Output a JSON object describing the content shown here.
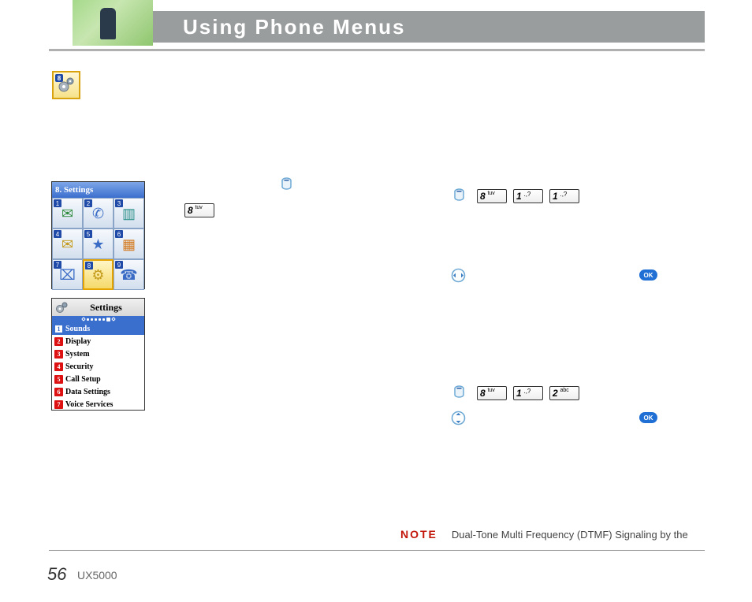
{
  "header": {
    "title": "Using Phone Menus"
  },
  "gearBadge": {
    "num": "8"
  },
  "phoneGrid": {
    "title": "8. Settings",
    "cells": [
      {
        "n": "1",
        "glyph": "✉",
        "cls": "green"
      },
      {
        "n": "2",
        "glyph": "✆",
        "cls": "blue"
      },
      {
        "n": "3",
        "glyph": "▥",
        "cls": "teal"
      },
      {
        "n": "4",
        "glyph": "✉",
        "cls": "gold"
      },
      {
        "n": "5",
        "glyph": "★",
        "cls": "blue"
      },
      {
        "n": "6",
        "glyph": "▦",
        "cls": "orange"
      },
      {
        "n": "7",
        "glyph": "⌧",
        "cls": "blue"
      },
      {
        "n": "8",
        "glyph": "⚙",
        "cls": "gold",
        "sel": true
      },
      {
        "n": "9",
        "glyph": "☎",
        "cls": "blue"
      }
    ]
  },
  "phoneList": {
    "title": "Settings",
    "rows": [
      {
        "n": "1",
        "label": "Sounds",
        "sel": true
      },
      {
        "n": "2",
        "label": "Display"
      },
      {
        "n": "3",
        "label": "System"
      },
      {
        "n": "4",
        "label": "Security"
      },
      {
        "n": "5",
        "label": "Call Setup"
      },
      {
        "n": "6",
        "label": "Data Settings"
      },
      {
        "n": "7",
        "label": "Voice Services"
      }
    ]
  },
  "keys": {
    "k8_big": "8",
    "k8_sml": "tuv",
    "k1_big": "1",
    "k1_sml": "",
    "k2_big": "2",
    "k2_sml": "abc",
    "ok": "OK"
  },
  "note": {
    "label": "NOTE",
    "text": "Dual-Tone Multi Frequency (DTMF) Signaling by the"
  },
  "footer": {
    "page": "56",
    "model": "UX5000"
  }
}
